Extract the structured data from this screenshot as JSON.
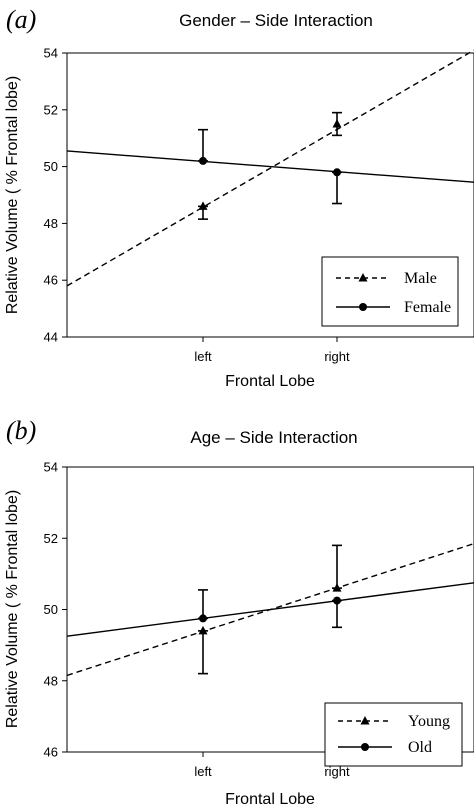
{
  "chart_data": [
    {
      "type": "line",
      "panel_label": "(a)",
      "title": "Gender – Side Interaction",
      "xlabel": "Frontal Lobe",
      "ylabel": "Relative Volume ( % Frontal lobe)",
      "categories": [
        "left",
        "right"
      ],
      "ylim": [
        44,
        54
      ],
      "yticks": [
        "44",
        "46",
        "48",
        "50",
        "52",
        "54"
      ],
      "legend_position": "bottom-right",
      "series": [
        {
          "name": "Male",
          "line_style": "dashed",
          "marker": "triangle",
          "values": [
            48.6,
            51.5
          ],
          "error_low": [
            48.15,
            51.1
          ],
          "error_high": [
            48.6,
            51.9
          ],
          "fit_ends": [
            45.8,
            54.1
          ]
        },
        {
          "name": "Female",
          "line_style": "solid",
          "marker": "circle",
          "values": [
            50.2,
            49.8
          ],
          "error_low": [
            50.2,
            48.7
          ],
          "error_high": [
            51.3,
            49.8
          ],
          "fit_ends": [
            50.55,
            49.45
          ]
        }
      ]
    },
    {
      "type": "line",
      "panel_label": "(b)",
      "title": "Age – Side Interaction",
      "xlabel": "Frontal Lobe",
      "ylabel": "Relative Volume ( % Frontal lobe)",
      "categories": [
        "left",
        "right"
      ],
      "ylim": [
        46,
        54
      ],
      "yticks": [
        "46",
        "48",
        "50",
        "52",
        "54"
      ],
      "legend_position": "bottom-right",
      "series": [
        {
          "name": "Young",
          "line_style": "dashed",
          "marker": "triangle",
          "values": [
            49.4,
            50.6
          ],
          "error_low": [
            48.2,
            50.6
          ],
          "error_high": [
            49.4,
            51.8
          ],
          "fit_ends": [
            48.15,
            51.85
          ]
        },
        {
          "name": "Old",
          "line_style": "solid",
          "marker": "circle",
          "values": [
            49.75,
            50.25
          ],
          "error_low": [
            49.75,
            49.5
          ],
          "error_high": [
            50.55,
            50.25
          ],
          "fit_ends": [
            49.25,
            50.75
          ]
        }
      ]
    }
  ]
}
